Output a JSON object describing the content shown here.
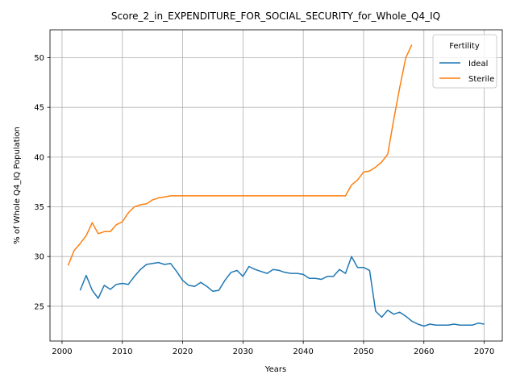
{
  "chart_data": {
    "type": "line",
    "title": "Score_2_in_EXPENDITURE_FOR_SOCIAL_SECURITY_for_Whole_Q4_IQ",
    "xlabel": "Years",
    "ylabel": "% of Whole Q4_IQ Population",
    "xlim": [
      1998,
      2073
    ],
    "ylim": [
      21.5,
      52.8
    ],
    "xticks": [
      2000,
      2010,
      2020,
      2030,
      2040,
      2050,
      2060,
      2070
    ],
    "yticks": [
      25,
      30,
      35,
      40,
      45,
      50
    ],
    "grid": true,
    "legend": {
      "title": "Fertility",
      "placement": "top-right"
    },
    "series": [
      {
        "name": "Ideal",
        "color": "#1f77b4",
        "x": [
          2003,
          2004,
          2005,
          2006,
          2007,
          2008,
          2009,
          2010,
          2011,
          2012,
          2013,
          2014,
          2015,
          2016,
          2017,
          2018,
          2019,
          2020,
          2021,
          2022,
          2023,
          2024,
          2025,
          2026,
          2027,
          2028,
          2029,
          2030,
          2031,
          2032,
          2033,
          2034,
          2035,
          2036,
          2037,
          2038,
          2039,
          2040,
          2041,
          2042,
          2043,
          2044,
          2045,
          2046,
          2047,
          2048,
          2049,
          2050,
          2051,
          2052,
          2053,
          2054,
          2055,
          2056,
          2057,
          2058,
          2059,
          2060,
          2061,
          2062,
          2063,
          2064,
          2065,
          2066,
          2067,
          2068,
          2069,
          2070
        ],
        "y": [
          26.6,
          28.1,
          26.6,
          25.8,
          27.1,
          26.7,
          27.2,
          27.3,
          27.2,
          28.0,
          28.7,
          29.2,
          29.3,
          29.4,
          29.2,
          29.3,
          28.5,
          27.6,
          27.1,
          27.0,
          27.4,
          27.0,
          26.5,
          26.6,
          27.6,
          28.4,
          28.6,
          28.0,
          29.0,
          28.7,
          28.5,
          28.3,
          28.7,
          28.6,
          28.4,
          28.3,
          28.3,
          28.2,
          27.8,
          27.8,
          27.7,
          28.0,
          28.0,
          28.7,
          28.3,
          30.0,
          28.9,
          28.9,
          28.6,
          24.5,
          23.9,
          24.6,
          24.2,
          24.4,
          24.0,
          23.5,
          23.2,
          23.0,
          23.2,
          23.1,
          23.1,
          23.1,
          23.2,
          23.1,
          23.1,
          23.1,
          23.3,
          23.2
        ]
      },
      {
        "name": "Sterile",
        "color": "#ff7f0e",
        "x": [
          2001,
          2002,
          2003,
          2004,
          2005,
          2006,
          2007,
          2008,
          2009,
          2010,
          2011,
          2012,
          2013,
          2014,
          2015,
          2016,
          2017,
          2018,
          2019,
          2020,
          2021,
          2022,
          2023,
          2024,
          2025,
          2026,
          2027,
          2028,
          2029,
          2030,
          2031,
          2032,
          2033,
          2034,
          2035,
          2036,
          2037,
          2038,
          2039,
          2040,
          2041,
          2042,
          2043,
          2044,
          2045,
          2046,
          2047,
          2048,
          2049,
          2050,
          2051,
          2052,
          2053,
          2054,
          2055,
          2056,
          2057,
          2058
        ],
        "y": [
          29.1,
          30.6,
          31.3,
          32.1,
          33.4,
          32.3,
          32.5,
          32.5,
          33.2,
          33.5,
          34.4,
          35.0,
          35.2,
          35.3,
          35.7,
          35.9,
          36.0,
          36.1,
          36.1,
          36.1,
          36.1,
          36.1,
          36.1,
          36.1,
          36.1,
          36.1,
          36.1,
          36.1,
          36.1,
          36.1,
          36.1,
          36.1,
          36.1,
          36.1,
          36.1,
          36.1,
          36.1,
          36.1,
          36.1,
          36.1,
          36.1,
          36.1,
          36.1,
          36.1,
          36.1,
          36.1,
          36.1,
          37.2,
          37.7,
          38.5,
          38.6,
          39.0,
          39.5,
          40.3,
          43.8,
          47.0,
          50.0,
          51.3
        ]
      }
    ]
  }
}
